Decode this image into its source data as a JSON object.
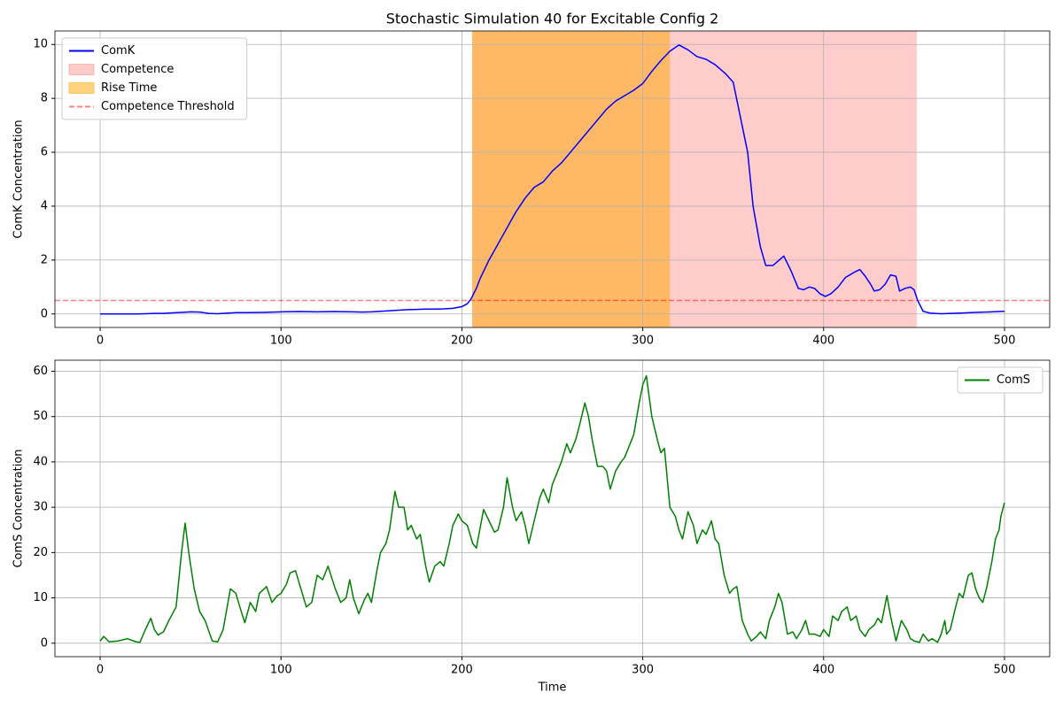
{
  "chart_data": [
    {
      "type": "line",
      "title": "Stochastic Simulation 40 for Excitable Config 2",
      "ylabel": "ComK Concentration",
      "xlim": [
        -25,
        525
      ],
      "xticks": [
        0,
        100,
        200,
        300,
        400,
        500
      ],
      "ylim": [
        -0.5,
        10.5
      ],
      "yticks": [
        0,
        2,
        4,
        6,
        8,
        10
      ],
      "grid": true,
      "legend": "upper left",
      "series": [
        {
          "name": "ComK",
          "color": "#0000ff",
          "x": [
            0,
            10,
            20,
            25,
            30,
            35,
            40,
            45,
            50,
            55,
            60,
            65,
            70,
            75,
            80,
            90,
            100,
            110,
            120,
            130,
            140,
            145,
            150,
            155,
            160,
            165,
            170,
            175,
            180,
            185,
            190,
            195,
            200,
            203,
            205,
            208,
            210,
            215,
            220,
            225,
            230,
            235,
            240,
            245,
            250,
            255,
            260,
            265,
            270,
            275,
            280,
            285,
            290,
            295,
            300,
            305,
            310,
            315,
            320,
            325,
            330,
            335,
            340,
            346,
            350,
            354,
            358,
            361,
            365,
            368,
            372,
            378,
            382,
            386,
            389,
            392,
            395,
            398,
            401,
            404,
            408,
            412,
            417,
            420,
            423,
            426,
            428,
            431,
            434,
            437,
            440,
            442,
            445,
            448,
            450,
            452,
            455,
            459,
            465,
            474,
            484,
            493,
            500
          ],
          "values": [
            0,
            0,
            0,
            0.01,
            0.02,
            0.02,
            0.04,
            0.06,
            0.08,
            0.07,
            0.02,
            0.01,
            0.03,
            0.05,
            0.05,
            0.06,
            0.08,
            0.09,
            0.08,
            0.09,
            0.08,
            0.07,
            0.08,
            0.1,
            0.12,
            0.14,
            0.16,
            0.17,
            0.18,
            0.18,
            0.19,
            0.21,
            0.27,
            0.38,
            0.55,
            0.95,
            1.3,
            2.0,
            2.6,
            3.2,
            3.8,
            4.3,
            4.7,
            4.9,
            5.3,
            5.6,
            6.0,
            6.4,
            6.8,
            7.2,
            7.6,
            7.9,
            8.1,
            8.3,
            8.55,
            9.0,
            9.4,
            9.75,
            9.98,
            9.8,
            9.55,
            9.45,
            9.25,
            8.9,
            8.6,
            7.3,
            6.0,
            4.0,
            2.5,
            1.8,
            1.8,
            2.15,
            1.6,
            0.95,
            0.9,
            1.0,
            0.95,
            0.75,
            0.65,
            0.75,
            1.0,
            1.35,
            1.55,
            1.65,
            1.4,
            1.1,
            0.85,
            0.9,
            1.1,
            1.45,
            1.4,
            0.85,
            0.95,
            1.0,
            0.9,
            0.5,
            0.1,
            0.03,
            0.01,
            0.03,
            0.06,
            0.08,
            0.1
          ]
        }
      ],
      "spans": [
        {
          "name": "Competence",
          "color": "#ff0000",
          "alpha": 0.2,
          "range": [
            205.7,
            451.5
          ]
        },
        {
          "name": "Rise Time",
          "color": "#ffa500",
          "alpha": 0.5,
          "range": [
            205.7,
            315
          ]
        }
      ],
      "hlines": [
        {
          "name": "Competence Threshold",
          "color": "#ff0000",
          "alpha": 0.5,
          "value": 0.5
        }
      ]
    },
    {
      "type": "line",
      "xlabel": "Time",
      "ylabel": "ComS Concentration",
      "xlim": [
        -25,
        525
      ],
      "xticks": [
        0,
        100,
        200,
        300,
        400,
        500
      ],
      "ylim": [
        -2.97,
        62.44
      ],
      "yticks": [
        0,
        10,
        20,
        30,
        40,
        50,
        60
      ],
      "grid": true,
      "legend": "upper right",
      "series": [
        {
          "name": "ComS",
          "color": "#008000",
          "x": [
            0,
            2,
            5,
            10,
            15,
            20,
            22,
            25,
            28,
            30,
            32,
            35,
            38,
            42,
            45,
            47,
            49,
            52,
            55,
            58,
            62,
            65,
            68,
            72,
            75,
            78,
            80,
            83,
            86,
            88,
            92,
            95,
            98,
            100,
            103,
            105,
            108,
            111,
            114,
            117,
            120,
            123,
            126,
            130,
            133,
            136,
            138,
            140,
            143,
            146,
            148,
            150,
            153,
            155,
            158,
            160,
            163,
            165,
            168,
            170,
            172,
            175,
            177,
            180,
            182,
            185,
            188,
            190,
            193,
            195,
            198,
            200,
            203,
            206,
            208,
            212,
            215,
            218,
            220,
            223,
            225,
            228,
            230,
            233,
            235,
            237,
            240,
            243,
            245,
            248,
            250,
            253,
            255,
            258,
            260,
            263,
            265,
            268,
            270,
            272,
            275,
            278,
            280,
            282,
            285,
            288,
            290,
            293,
            295,
            298,
            300,
            302,
            305,
            308,
            310,
            312,
            315,
            318,
            320,
            322,
            325,
            328,
            330,
            333,
            335,
            338,
            340,
            342,
            345,
            348,
            350,
            352,
            355,
            358,
            360,
            363,
            365,
            368,
            370,
            373,
            375,
            377,
            380,
            383,
            385,
            388,
            390,
            392,
            395,
            398,
            400,
            403,
            405,
            408,
            410,
            413,
            415,
            418,
            420,
            423,
            425,
            428,
            430,
            432,
            435,
            437,
            440,
            443,
            446,
            448,
            450,
            453,
            455,
            458,
            460,
            463,
            465,
            467,
            468,
            470,
            473,
            475,
            477,
            480,
            482,
            484,
            486,
            488,
            490,
            493,
            495,
            497,
            498,
            500
          ],
          "values": [
            0.5,
            1.5,
            0.3,
            0.5,
            1,
            0.3,
            0.2,
            3,
            5.5,
            3,
            1.8,
            2.5,
            5,
            8,
            20,
            26.5,
            20,
            12,
            7,
            5,
            0.5,
            0.3,
            3,
            12,
            11,
            7,
            4.5,
            9,
            7,
            11,
            12.5,
            9,
            10.5,
            11,
            13,
            15.5,
            16,
            12,
            8,
            9,
            15,
            14,
            17,
            12,
            9,
            10,
            14,
            10,
            6.5,
            9.5,
            11,
            9,
            16,
            20,
            22,
            25,
            33.5,
            30,
            30,
            25,
            26,
            23,
            24,
            17,
            13.5,
            17,
            18,
            17,
            22,
            26,
            28.5,
            27,
            26,
            22,
            21,
            29.5,
            27,
            24.5,
            25,
            30,
            36.5,
            30,
            27,
            29,
            26,
            22,
            27,
            32,
            34,
            31,
            35,
            38,
            40,
            44,
            42,
            45,
            48,
            53,
            50,
            45,
            39,
            39,
            38,
            34,
            38,
            40,
            41,
            44,
            46,
            53,
            57,
            59,
            50,
            45,
            42,
            43,
            30,
            28,
            25,
            23,
            29,
            26,
            22,
            25,
            24,
            27,
            23,
            22,
            15,
            11,
            12,
            12.5,
            5,
            2,
            0.5,
            1.5,
            2.5,
            1,
            5,
            8,
            11,
            9,
            2,
            2.5,
            1,
            3,
            5,
            2,
            2,
            1.5,
            3,
            1.5,
            6,
            5,
            7,
            8,
            5,
            6,
            3,
            1.5,
            3,
            4,
            5.5,
            4.5,
            10.5,
            6,
            0.5,
            5,
            3,
            1,
            0.5,
            0.2,
            2,
            0.5,
            1,
            0.2,
            2,
            5,
            2,
            3,
            8,
            11,
            10,
            15,
            15.5,
            12,
            10,
            9,
            12,
            18,
            23,
            25,
            28,
            31
          ]
        }
      ]
    }
  ]
}
